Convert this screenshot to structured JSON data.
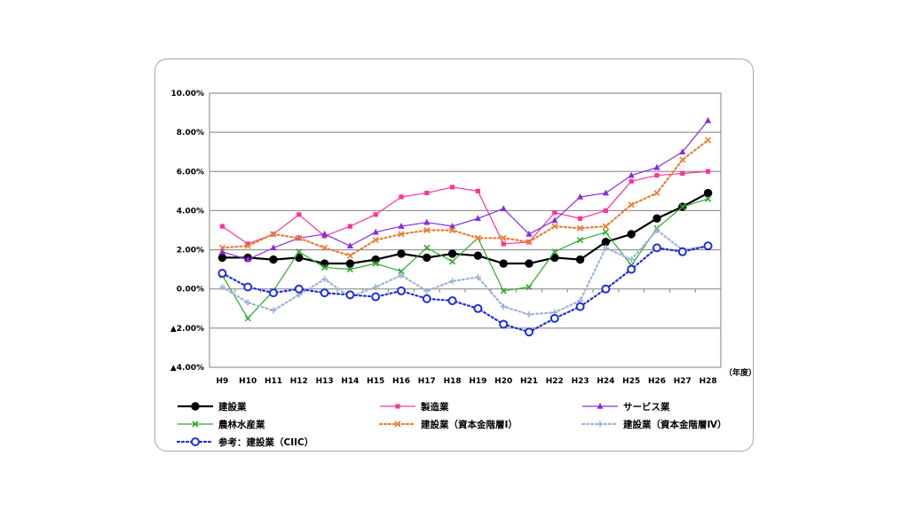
{
  "chart_data": {
    "type": "line",
    "title": "",
    "xlabel": "",
    "ylabel": "",
    "x_unit": "（年度）",
    "categories": [
      "H9",
      "H10",
      "H11",
      "H12",
      "H13",
      "H14",
      "H15",
      "H16",
      "H17",
      "H18",
      "H19",
      "H20",
      "H21",
      "H22",
      "H23",
      "H24",
      "H25",
      "H26",
      "H27",
      "H28"
    ],
    "ylim": [
      -4,
      10
    ],
    "y_ticks": [
      {
        "value": 10,
        "label": "10.00%"
      },
      {
        "value": 8,
        "label": "8.00%"
      },
      {
        "value": 6,
        "label": "6.00%"
      },
      {
        "value": 4,
        "label": "4.00%"
      },
      {
        "value": 2,
        "label": "2.00%"
      },
      {
        "value": 0,
        "label": "0.00%"
      },
      {
        "value": -2,
        "label": "▲2.00%"
      },
      {
        "value": -4,
        "label": "▲4.00%"
      }
    ],
    "grid": true,
    "legend_position": "bottom",
    "series": [
      {
        "name": "建設業",
        "color": "#000000",
        "marker": "circle-filled",
        "dash": "solid",
        "width": 2.2,
        "values": [
          1.6,
          1.6,
          1.5,
          1.6,
          1.3,
          1.3,
          1.5,
          1.8,
          1.6,
          1.8,
          1.7,
          1.3,
          1.3,
          1.6,
          1.5,
          2.4,
          2.8,
          3.6,
          4.2,
          4.9
        ]
      },
      {
        "name": "製造業",
        "color": "#ff3399",
        "marker": "square",
        "dash": "solid",
        "width": 1.2,
        "values": [
          3.2,
          2.3,
          2.8,
          3.8,
          2.7,
          3.2,
          3.8,
          4.7,
          4.9,
          5.2,
          5.0,
          2.3,
          2.4,
          3.9,
          3.6,
          4.0,
          5.5,
          5.8,
          5.9,
          6.0
        ]
      },
      {
        "name": "サービス業",
        "color": "#8a2be2",
        "marker": "triangle",
        "dash": "solid",
        "width": 1.2,
        "values": [
          1.9,
          1.5,
          2.1,
          2.6,
          2.8,
          2.2,
          2.9,
          3.2,
          3.4,
          3.2,
          3.6,
          4.1,
          2.8,
          3.5,
          4.7,
          4.9,
          5.8,
          6.2,
          7.0,
          8.6
        ]
      },
      {
        "name": "農林水産業",
        "color": "#2eaa2e",
        "marker": "x",
        "dash": "solid",
        "width": 1.2,
        "values": [
          0.7,
          -1.5,
          -0.1,
          1.9,
          1.1,
          1.0,
          1.3,
          0.9,
          2.1,
          1.4,
          2.6,
          -0.1,
          0.1,
          1.9,
          2.5,
          2.9,
          1.2,
          3.1,
          4.2,
          4.6
        ]
      },
      {
        "name": "建設業（資本金階層Ⅰ）",
        "color": "#ed7d31",
        "marker": "x",
        "dash": "dot",
        "width": 2.2,
        "values": [
          2.1,
          2.2,
          2.8,
          2.6,
          2.1,
          1.7,
          2.5,
          2.8,
          3.0,
          3.0,
          2.6,
          2.6,
          2.4,
          3.2,
          3.1,
          3.2,
          4.3,
          4.9,
          6.6,
          7.6
        ]
      },
      {
        "name": "建設業（資本金階層Ⅳ）",
        "color": "#9db3d8",
        "marker": "plus",
        "dash": "dot",
        "width": 2.2,
        "values": [
          0.1,
          -0.7,
          -1.1,
          -0.3,
          0.5,
          -0.4,
          0.1,
          0.7,
          -0.1,
          0.4,
          0.6,
          -0.9,
          -1.3,
          -1.2,
          -0.6,
          2.1,
          1.5,
          3.0,
          2.0,
          2.2
        ]
      },
      {
        "name": "参考：建設業（CIIC）",
        "color": "#1f2fdc",
        "marker": "circle-open",
        "dash": "dot",
        "width": 2.2,
        "values": [
          0.8,
          0.1,
          -0.2,
          0.0,
          -0.2,
          -0.3,
          -0.4,
          -0.1,
          -0.5,
          -0.6,
          -1.0,
          -1.8,
          -2.2,
          -1.5,
          -0.9,
          0.0,
          1.0,
          2.1,
          1.9,
          2.2
        ]
      }
    ]
  }
}
